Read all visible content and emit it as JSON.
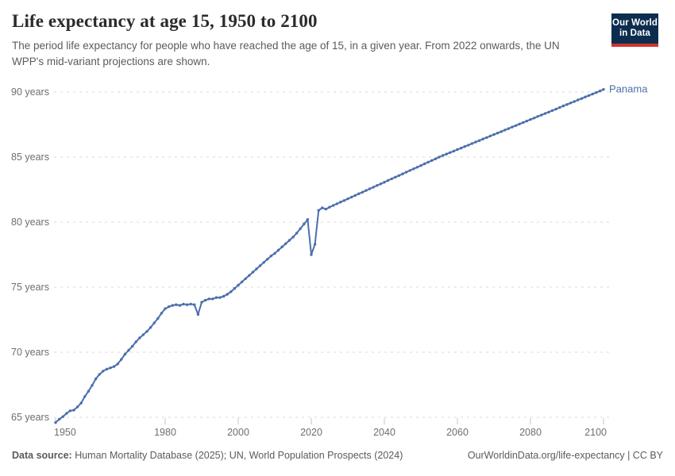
{
  "header": {
    "title": "Life expectancy at age 15, 1950 to 2100",
    "subtitle": "The period life expectancy for people who have reached the age of 15, in a given year. From 2022 onwards, the UN WPP's mid-variant projections are shown."
  },
  "logo": {
    "line1": "Our World",
    "line2": "in Data",
    "bg_color": "#0d2d4f",
    "stripe_color": "#d0342f"
  },
  "footer": {
    "source_label": "Data source:",
    "source_text": " Human Mortality Database (2025); UN, World Population Prospects (2024)",
    "right_text": "OurWorldinData.org/life-expectancy | CC BY"
  },
  "chart_data": {
    "type": "line",
    "title": "Life expectancy at age 15, 1950 to 2100",
    "xlabel": "",
    "ylabel": "",
    "x_start": 1950,
    "x_step": 1,
    "xlim": [
      1950,
      2100
    ],
    "ylim": [
      64,
      91
    ],
    "grid": "dashed-horizontal",
    "x_ticks": [
      1950,
      1980,
      2000,
      2020,
      2040,
      2060,
      2080,
      2100
    ],
    "y_ticks": [
      {
        "value": 65,
        "label": "65 years"
      },
      {
        "value": 70,
        "label": "70 years"
      },
      {
        "value": 75,
        "label": "75 years"
      },
      {
        "value": 80,
        "label": "80 years"
      },
      {
        "value": 85,
        "label": "85 years"
      },
      {
        "value": 90,
        "label": "90 years"
      }
    ],
    "line_color": "#4c6fab",
    "grid_color": "#d9d9d9",
    "axis_text_color": "#6e6e6e",
    "annotations": [
      {
        "text": "Panama",
        "year": 2100,
        "position": "line-end"
      }
    ],
    "series": [
      {
        "name": "Panama",
        "note": "observed 1950-2021; UN WPP mid-variant projection 2022-2100; dips at 1989 and 2020",
        "values": [
          64.6,
          64.85,
          65.05,
          65.3,
          65.5,
          65.55,
          65.8,
          66.1,
          66.6,
          67.0,
          67.45,
          67.95,
          68.3,
          68.55,
          68.7,
          68.8,
          68.9,
          69.1,
          69.45,
          69.85,
          70.15,
          70.45,
          70.8,
          71.1,
          71.35,
          71.6,
          71.9,
          72.25,
          72.6,
          73.0,
          73.35,
          73.5,
          73.6,
          73.65,
          73.6,
          73.7,
          73.65,
          73.7,
          73.65,
          72.9,
          73.85,
          74.0,
          74.1,
          74.1,
          74.2,
          74.2,
          74.3,
          74.45,
          74.65,
          74.9,
          75.15,
          75.4,
          75.65,
          75.9,
          76.15,
          76.4,
          76.65,
          76.9,
          77.15,
          77.4,
          77.6,
          77.85,
          78.1,
          78.35,
          78.6,
          78.85,
          79.15,
          79.5,
          79.85,
          80.2,
          77.5,
          78.3,
          80.9,
          81.1,
          81.0,
          81.15,
          81.28,
          81.41,
          81.54,
          81.66,
          81.79,
          81.92,
          82.05,
          82.18,
          82.3,
          82.43,
          82.56,
          82.69,
          82.82,
          82.94,
          83.07,
          83.2,
          83.33,
          83.46,
          83.58,
          83.71,
          83.84,
          83.97,
          84.1,
          84.22,
          84.35,
          84.48,
          84.61,
          84.74,
          84.86,
          85.0,
          85.12,
          85.23,
          85.35,
          85.46,
          85.58,
          85.69,
          85.81,
          85.92,
          86.04,
          86.16,
          86.27,
          86.39,
          86.5,
          86.62,
          86.73,
          86.85,
          86.96,
          87.08,
          87.19,
          87.31,
          87.42,
          87.54,
          87.66,
          87.77,
          87.89,
          88.0,
          88.12,
          88.23,
          88.35,
          88.46,
          88.58,
          88.69,
          88.81,
          88.93,
          89.04,
          89.16,
          89.27,
          89.39,
          89.5,
          89.62,
          89.73,
          89.85,
          89.96,
          90.08,
          90.2
        ]
      }
    ]
  }
}
